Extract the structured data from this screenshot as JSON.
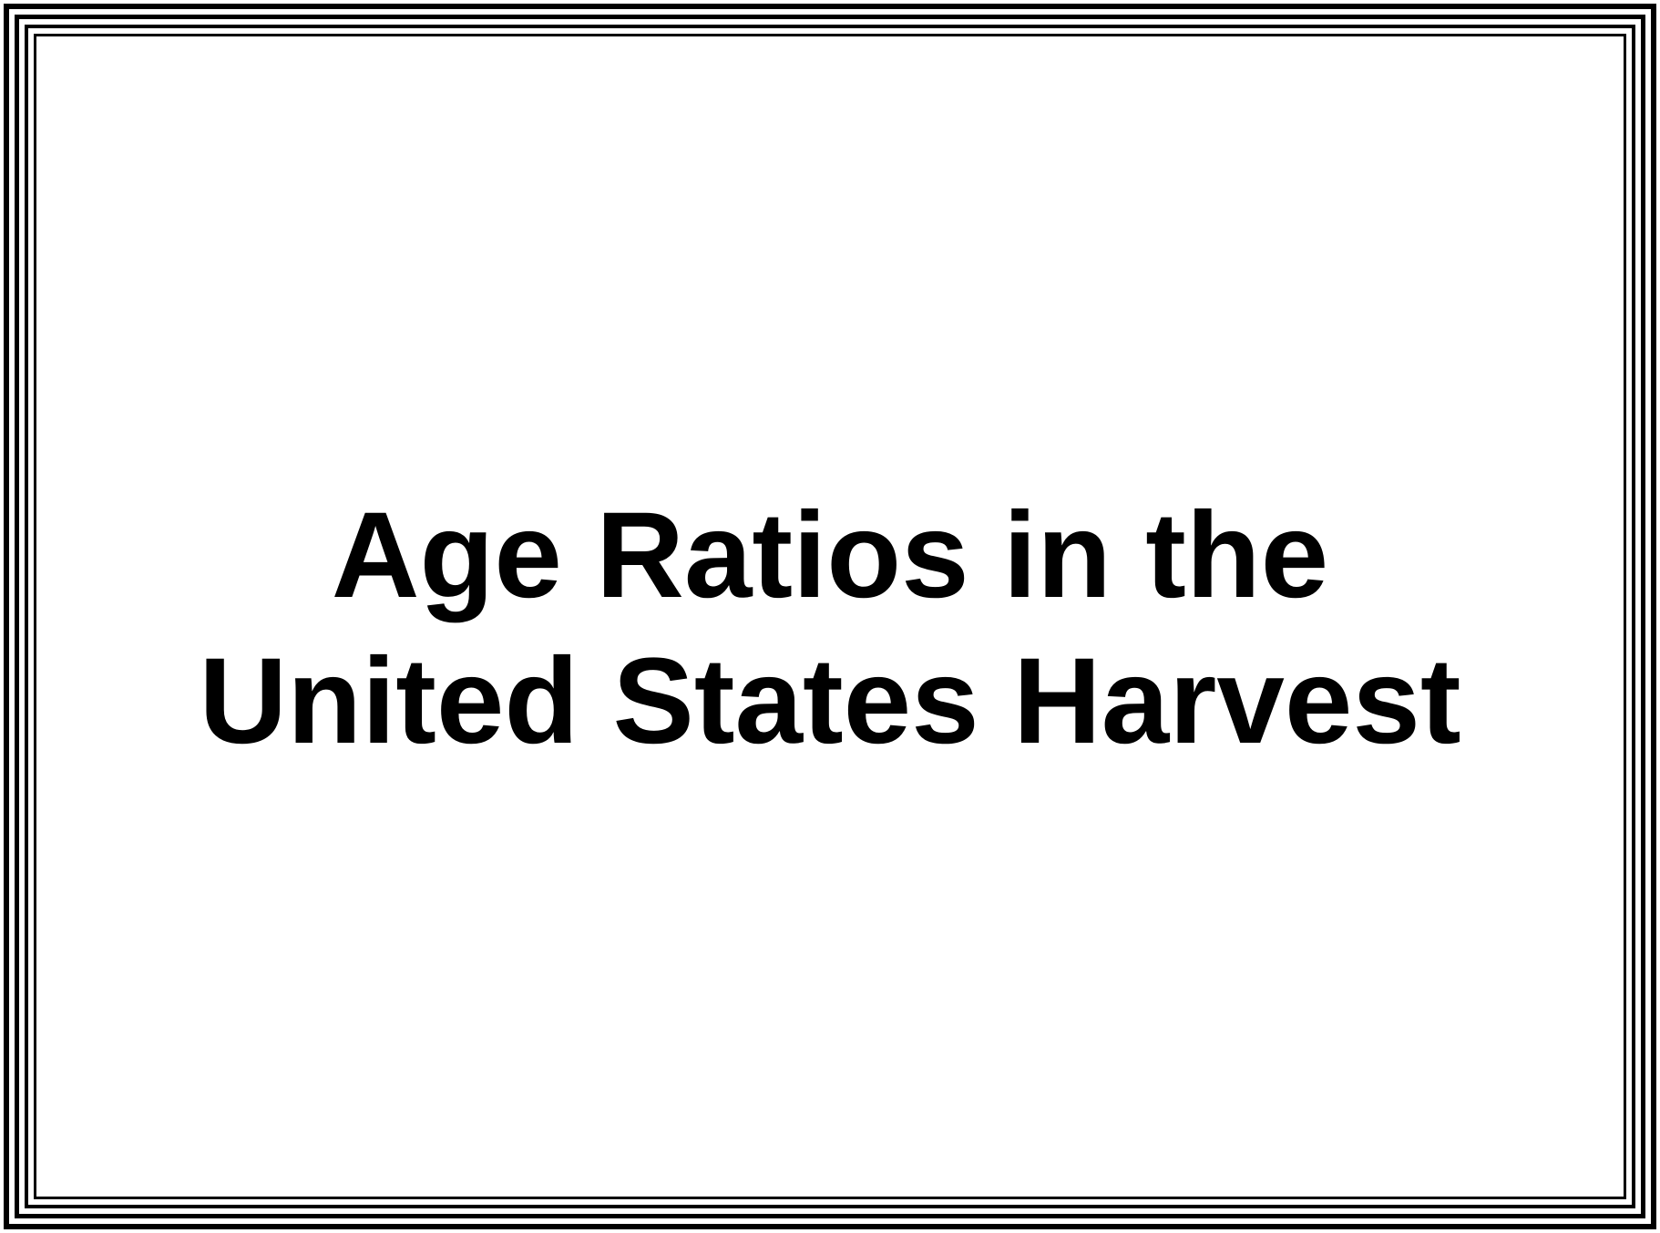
{
  "slide": {
    "title_lines": [
      "Age Ratios in the",
      "United States Harvest"
    ],
    "colors": {
      "background": "#ffffff",
      "text": "#000000",
      "border": "#000000"
    }
  }
}
